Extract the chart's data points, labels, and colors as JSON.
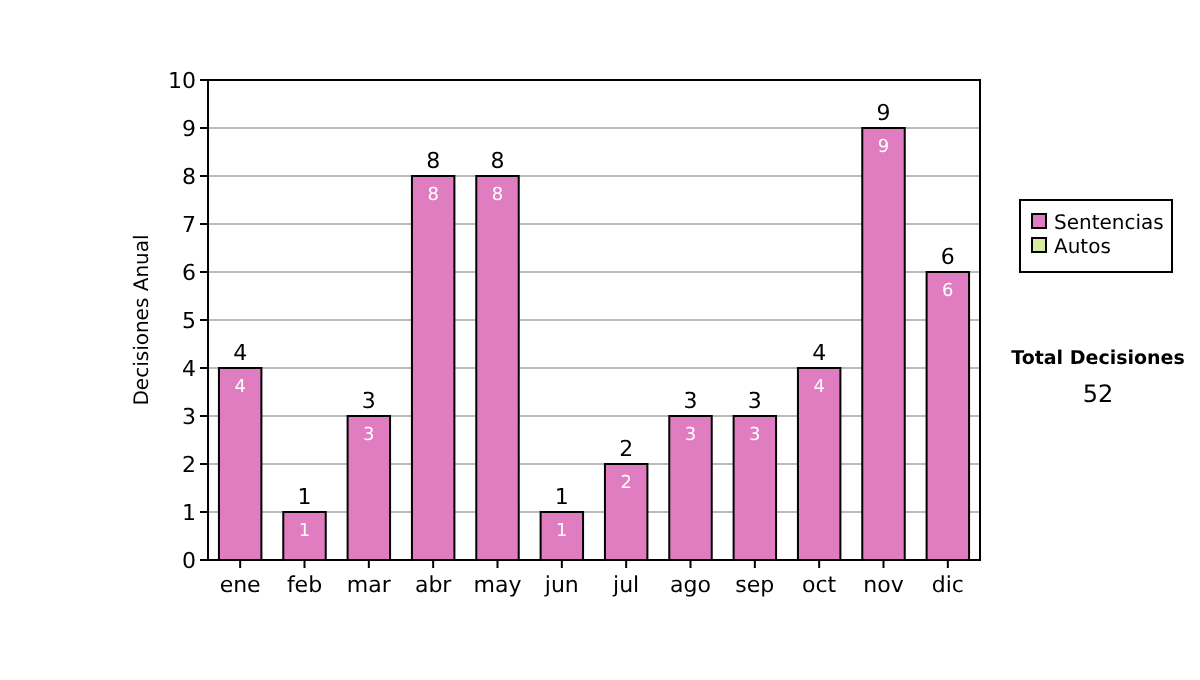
{
  "chart_data": {
    "type": "bar",
    "ylabel": "Decisiones Anual",
    "categories": [
      "ene",
      "feb",
      "mar",
      "abr",
      "may",
      "jun",
      "jul",
      "ago",
      "sep",
      "oct",
      "nov",
      "dic"
    ],
    "series": [
      {
        "name": "Sentencias",
        "color": "#e07cc0",
        "values": [
          4,
          1,
          3,
          8,
          8,
          1,
          2,
          3,
          3,
          4,
          9,
          6
        ],
        "value_labels": [
          "4",
          "1",
          "3",
          "8",
          "8",
          "1",
          "2",
          "3",
          "3",
          "4",
          "9",
          "6"
        ]
      },
      {
        "name": "Autos",
        "color": "#d6eaa0",
        "values": [
          0,
          0,
          0,
          0,
          0,
          0,
          0,
          0,
          0,
          0,
          0,
          0
        ]
      }
    ],
    "stacked": true,
    "totals": [
      "4",
      "1",
      "3",
      "8",
      "8",
      "1",
      "2",
      "3",
      "3",
      "4",
      "9",
      "6"
    ],
    "ylim": [
      0,
      10
    ],
    "yticks": [
      0,
      1,
      2,
      3,
      4,
      5,
      6,
      7,
      8,
      9,
      10
    ],
    "grid": "y",
    "legend": "right",
    "annotations": [
      "Total Decisiones",
      "52"
    ]
  }
}
